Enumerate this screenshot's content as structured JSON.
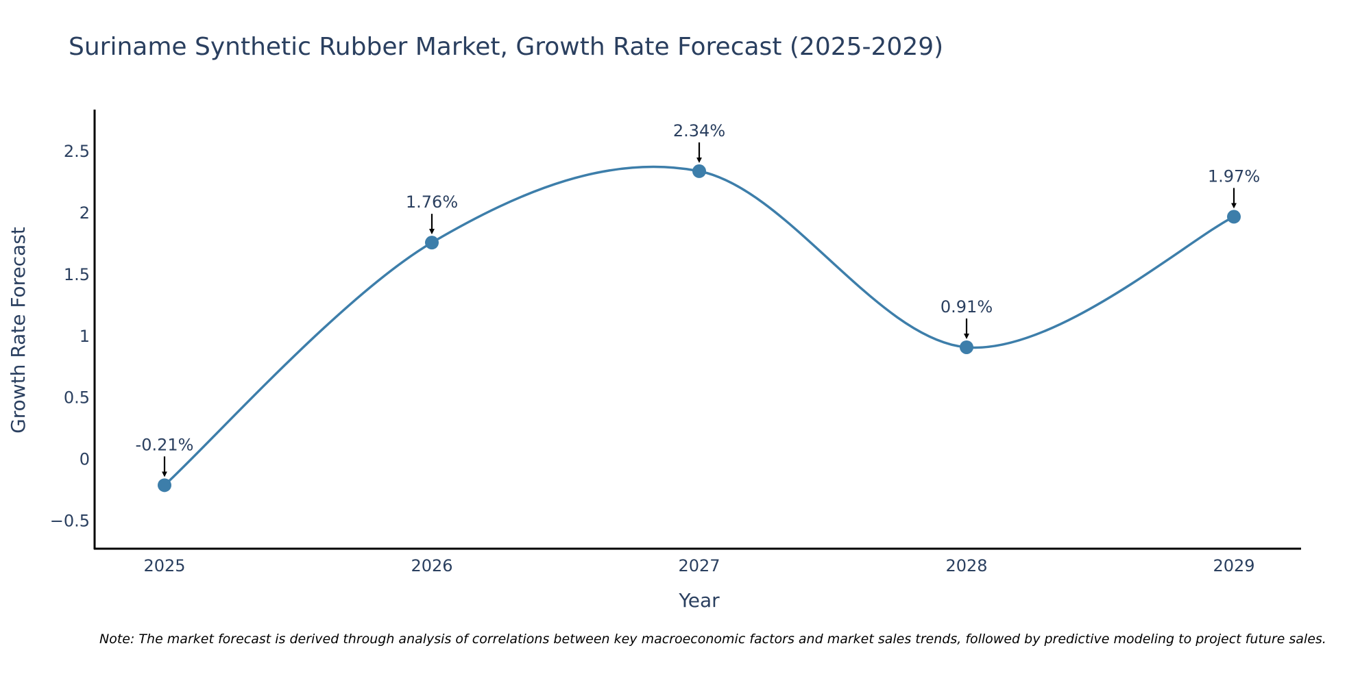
{
  "chart_data": {
    "type": "line",
    "title": "Suriname Synthetic Rubber Market, Growth Rate Forecast (2025-2029)",
    "xlabel": "Year",
    "ylabel": "Growth Rate Forecast",
    "categories": [
      "2025",
      "2026",
      "2027",
      "2028",
      "2029"
    ],
    "series": [
      {
        "name": "Growth Rate Forecast",
        "values": [
          -0.21,
          1.76,
          2.34,
          0.91,
          1.97
        ]
      }
    ],
    "data_labels": [
      "-0.21%",
      "1.76%",
      "2.34%",
      "0.91%",
      "1.97%"
    ],
    "ylim": [
      -0.72,
      2.84
    ],
    "yticks": [
      -0.5,
      0,
      0.5,
      1,
      1.5,
      2,
      2.5
    ],
    "ytick_labels": [
      "−0.5",
      "0",
      "0.5",
      "1",
      "1.5",
      "2",
      "2.5"
    ],
    "grid": false,
    "line_color": "#3d7eaa",
    "marker_color": "#3d7eaa",
    "annotation_arrow_color": "#000000",
    "note": "Note: The market forecast is derived through analysis of correlations between key macroeconomic factors and market sales trends, followed by predictive modeling to project future sales."
  }
}
